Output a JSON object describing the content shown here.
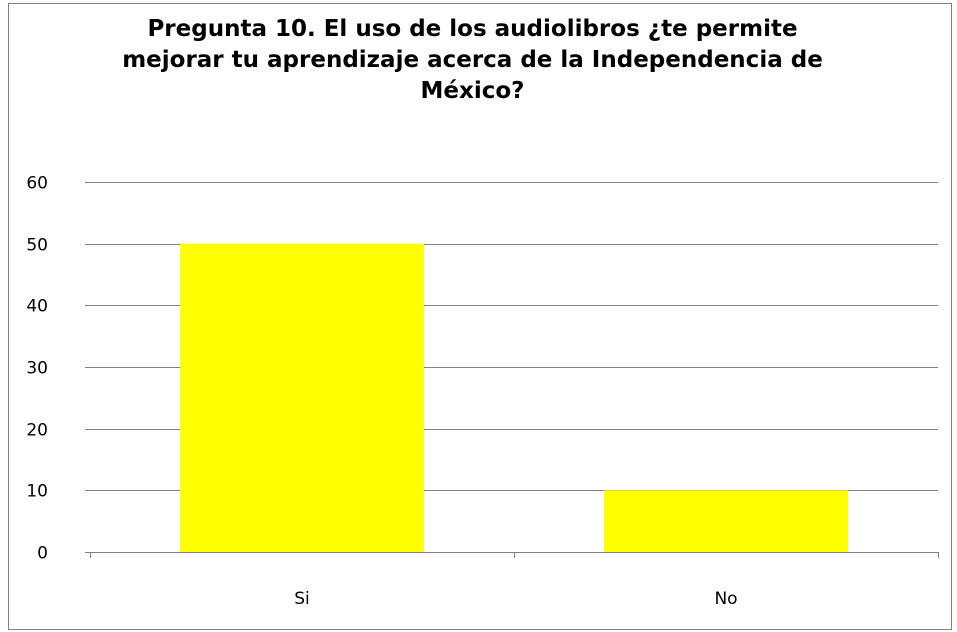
{
  "chart_data": {
    "type": "bar",
    "title_lines": [
      "Pregunta 10.  El uso de los audiolibros ¿te permite",
      "mejorar tu aprendizaje acerca de la Independencia de",
      "México?"
    ],
    "categories": [
      "Si",
      "No"
    ],
    "values": [
      50,
      10
    ],
    "bar_color": "#ffff00",
    "ylim": [
      0,
      60
    ],
    "yticks": [
      0,
      10,
      20,
      30,
      40,
      50,
      60
    ],
    "grid": true,
    "legend": false
  }
}
